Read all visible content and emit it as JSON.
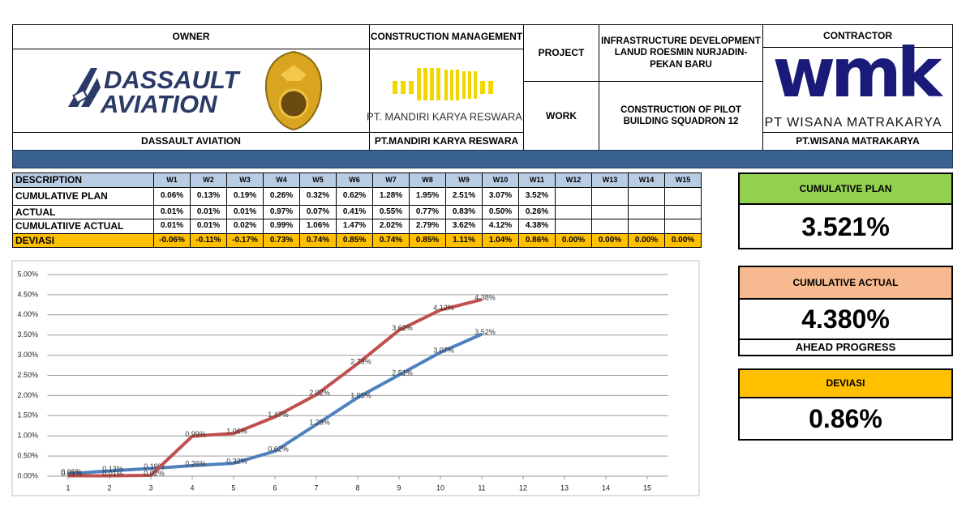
{
  "header": {
    "owner": {
      "title": "OWNER",
      "logo_text": [
        "DASSAULT",
        "AVIATION"
      ],
      "name": "DASSAULT AVIATION"
    },
    "construction_management": {
      "title": "CONSTRUCTION MANAGEMENT",
      "logo_text": "PT. MANDIRI KARYA RESWARA",
      "name": "PT.MANDIRI KARYA RESWARA"
    },
    "project": {
      "label": "PROJECT",
      "text": "INFRASTRUCTURE DEVELOPMENT LANUD ROESMIN NURJADIN-PEKAN BARU"
    },
    "work": {
      "label": "WORK",
      "text": "CONSTRUCTION OF PILOT BUILDING SQUADRON 12"
    },
    "contractor": {
      "title": "CONTRACTOR",
      "logo_text": [
        "wmk",
        "PT WISANA MATRAKARYA"
      ],
      "name": "PT.WISANA MATRAKARYA"
    }
  },
  "table": {
    "columns": [
      "DESCRIPTION",
      "W1",
      "W2",
      "W3",
      "W4",
      "W5",
      "W6",
      "W7",
      "W8",
      "W9",
      "W10",
      "W11",
      "W12",
      "W13",
      "W14",
      "W15"
    ],
    "rows": [
      [
        "CUMULATIVE PLAN",
        "0.06%",
        "0.13%",
        "0.19%",
        "0.26%",
        "0.32%",
        "0.62%",
        "1.28%",
        "1.95%",
        "2.51%",
        "3.07%",
        "3.52%"
      ],
      [
        "ACTUAL",
        "0.01%",
        "0.01%",
        "0.01%",
        "0.97%",
        "0.07%",
        "0.41%",
        "0.55%",
        "0.77%",
        "0.83%",
        "0.50%",
        "0.26%"
      ],
      [
        "CUMULATIIVE ACTUAL",
        "0.01%",
        "0.01%",
        "0.02%",
        "0.99%",
        "1.06%",
        "1.47%",
        "2.02%",
        "2.79%",
        "3.62%",
        "4.12%",
        "4.38%"
      ],
      [
        "DEVIASI",
        "-0.06%",
        "-0.11%",
        "-0.17%",
        "0.73%",
        "0.74%",
        "0.85%",
        "0.74%",
        "0.85%",
        "1.11%",
        "1.04%",
        "0.86%",
        "0.00%",
        "0.00%",
        "0.00%",
        "0.00%"
      ]
    ]
  },
  "kpis": [
    {
      "title": "CUMULATIVE PLAN",
      "value": "3.521%"
    },
    {
      "title": "CUMULATIVE ACTUAL",
      "value": "4.380%",
      "note": "AHEAD PROGRESS"
    },
    {
      "title": "DEVIASI",
      "value": "0.86%"
    }
  ],
  "chart_data": {
    "type": "line",
    "x": [
      1,
      2,
      3,
      4,
      5,
      6,
      7,
      8,
      9,
      10,
      11,
      12,
      13,
      14,
      15
    ],
    "series": [
      {
        "name": "CUMULATIVE PLAN",
        "color": "#4f81bd",
        "values": [
          0.06,
          0.13,
          0.19,
          0.26,
          0.32,
          0.62,
          1.28,
          1.95,
          2.51,
          3.07,
          3.52,
          null,
          null,
          null,
          null
        ],
        "value_labels": [
          "0.06%",
          "0.13%",
          "0.19%",
          "0.26%",
          "0.32%",
          "0.62%",
          "1.28%",
          "1.95%",
          "2.51%",
          "3.07%",
          "3.52%",
          null,
          null,
          null,
          null
        ]
      },
      {
        "name": "CUMULATIIVE ACTUAL",
        "color": "#c0504d",
        "values": [
          0.01,
          0.01,
          0.02,
          0.99,
          1.06,
          1.47,
          2.02,
          2.79,
          3.62,
          4.12,
          4.38,
          null,
          null,
          null,
          null
        ],
        "value_labels": [
          "0.01%",
          "0.01%",
          "0.02%",
          "0.99%",
          "1.06%",
          "1.47%",
          "2.02%",
          "2.79%",
          "3.62%",
          "4.12%",
          "4.38%",
          null,
          null,
          null,
          null
        ]
      }
    ],
    "xlim": [
      0.5,
      15.5
    ],
    "xticks": [
      1,
      2,
      3,
      4,
      5,
      6,
      7,
      8,
      9,
      10,
      11,
      12,
      13,
      14,
      15
    ],
    "ylim": [
      0,
      5
    ],
    "yticks": [
      {
        "value": 0,
        "label": "0.00%"
      },
      {
        "value": 0.5,
        "label": "0.50%"
      },
      {
        "value": 1,
        "label": "1.00%"
      },
      {
        "value": 1.5,
        "label": "1.50%"
      },
      {
        "value": 2,
        "label": "2.00%"
      },
      {
        "value": 2.5,
        "label": "2.50%"
      },
      {
        "value": 3,
        "label": "3.00%"
      },
      {
        "value": 3.5,
        "label": "3.50%"
      },
      {
        "value": 4,
        "label": "4.00%"
      },
      {
        "value": 4.5,
        "label": "4.50%"
      },
      {
        "value": 5,
        "label": "5.00%"
      }
    ],
    "grid": true
  }
}
